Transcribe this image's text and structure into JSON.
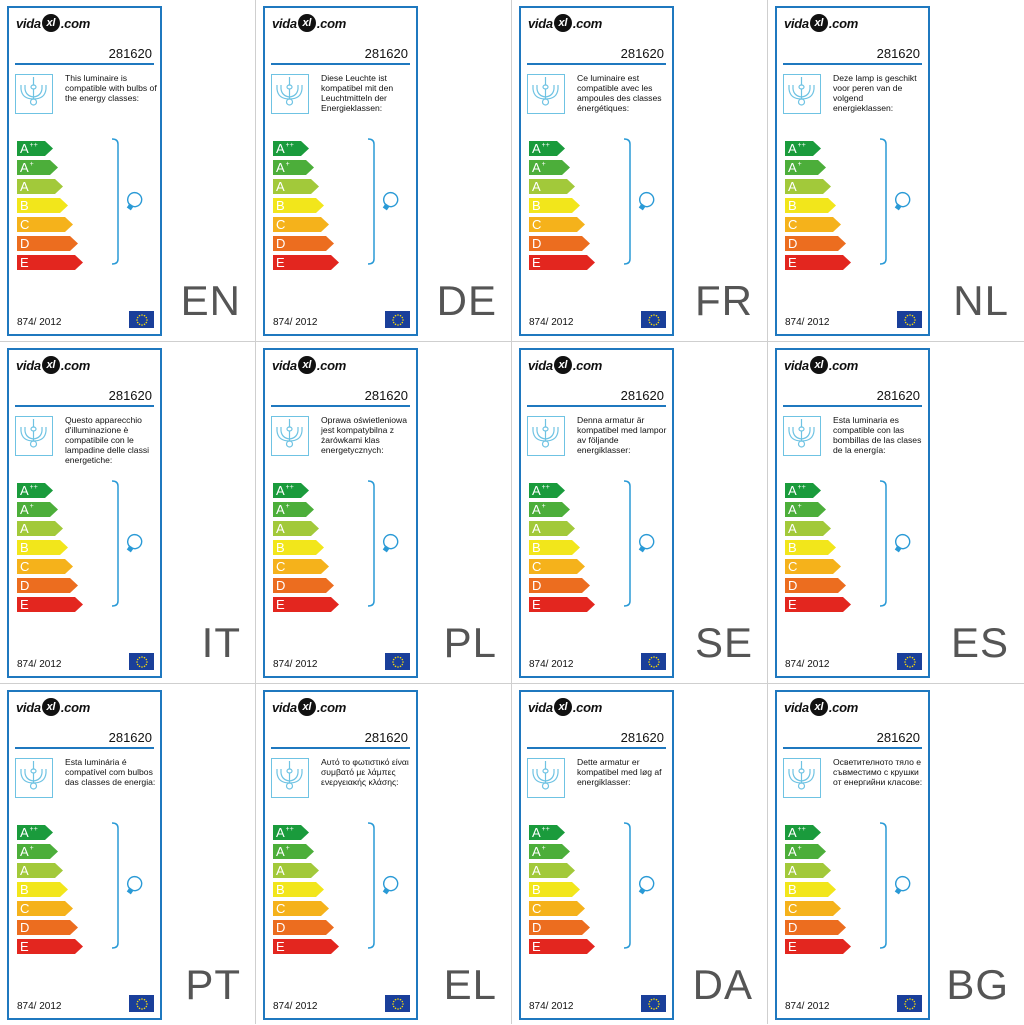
{
  "brand": {
    "logo_left": "vida",
    "logo_mid": "xl",
    "logo_right": ".com"
  },
  "product_code": "281620",
  "regulation": "874/ 2012",
  "energy_classes": [
    {
      "label": "A",
      "sup": "++",
      "color": "#1a9b3c"
    },
    {
      "label": "A",
      "sup": "+",
      "color": "#4cae3a"
    },
    {
      "label": "A",
      "sup": "",
      "color": "#a2c93a"
    },
    {
      "label": "B",
      "sup": "",
      "color": "#f2e61b"
    },
    {
      "label": "C",
      "sup": "",
      "color": "#f5b21b"
    },
    {
      "label": "D",
      "sup": "",
      "color": "#ec6d1f"
    },
    {
      "label": "E",
      "sup": "",
      "color": "#e3261f"
    }
  ],
  "colors": {
    "border": "#1f78bf",
    "lamp": "#6fc3e3",
    "eu_flag": "#1a3f9a",
    "eu_stars": "#f5d90a",
    "bulb": "#2a9ad6"
  },
  "labels": [
    {
      "lang": "EN",
      "text": "This luminaire is compatible with bulbs of the energy classes:"
    },
    {
      "lang": "DE",
      "text": "Diese Leuchte ist kompatibel mit den Leuchtmitteln der Energieklassen:"
    },
    {
      "lang": "FR",
      "text": "Ce luminaire est compatible avec les ampoules des classes énergétiques:"
    },
    {
      "lang": "NL",
      "text": "Deze lamp is geschikt voor peren van de volgend energieklassen:"
    },
    {
      "lang": "IT",
      "text": "Questo apparecchio d'illuminazione è compatibile con le lampadine delle classi energetiche:"
    },
    {
      "lang": "PL",
      "text": "Oprawa oświetleniowa jest kompatybilna z żarówkami klas energetycznych:"
    },
    {
      "lang": "SE",
      "text": "Denna armatur är kompatibel med lampor av följande energiklasser:"
    },
    {
      "lang": "ES",
      "text": "Esta luminaria es compatible con las bombillas de las clases de la energía:"
    },
    {
      "lang": "PT",
      "text": "Esta luminária é compatível com bulbos das classes de energia:"
    },
    {
      "lang": "EL",
      "text": "Αυτό το φωτιστικό είναι συμβατό με λάμπες ενεργειακής κλάσης:"
    },
    {
      "lang": "DA",
      "text": "Dette armatur er kompatibel med løg af energiklasser:"
    },
    {
      "lang": "BG",
      "text": "Осветителното тяло е съвместимо с крушки от енергийни класове:"
    }
  ]
}
